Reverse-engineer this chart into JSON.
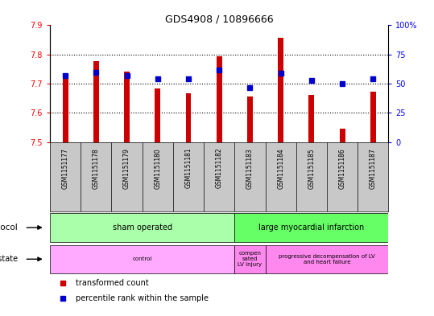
{
  "title": "GDS4908 / 10896666",
  "samples": [
    "GSM1151177",
    "GSM1151178",
    "GSM1151179",
    "GSM1151180",
    "GSM1151181",
    "GSM1151182",
    "GSM1151183",
    "GSM1151184",
    "GSM1151185",
    "GSM1151186",
    "GSM1151187"
  ],
  "transformed_count": [
    7.722,
    7.778,
    7.742,
    7.685,
    7.668,
    7.793,
    7.656,
    7.858,
    7.663,
    7.545,
    7.672
  ],
  "percentile_rank": [
    57,
    60,
    57,
    54,
    54,
    62,
    47,
    59,
    53,
    50,
    54
  ],
  "ylim_left": [
    7.5,
    7.9
  ],
  "ylim_right": [
    0,
    100
  ],
  "yticks_left": [
    7.5,
    7.6,
    7.7,
    7.8,
    7.9
  ],
  "yticks_right": [
    0,
    25,
    50,
    75,
    100
  ],
  "bar_color": "#cc0000",
  "dot_color": "#0000cc",
  "bar_bottom": 7.5,
  "bar_width": 0.18,
  "protocol_groups": [
    {
      "label": "sham operated",
      "start": 0,
      "end": 6,
      "color": "#aaffaa"
    },
    {
      "label": "large myocardial infarction",
      "start": 6,
      "end": 11,
      "color": "#66ff66"
    }
  ],
  "disease_groups": [
    {
      "label": "control",
      "start": 0,
      "end": 6,
      "color": "#ffaaff"
    },
    {
      "label": "compen\nsated\nLV injury",
      "start": 6,
      "end": 7,
      "color": "#ff88ee"
    },
    {
      "label": "progressive decompensation of LV\nand heart failure",
      "start": 7,
      "end": 11,
      "color": "#ff88ee"
    }
  ],
  "xtick_bg": "#c8c8c8",
  "grid_dotted_ticks": [
    7.6,
    7.7,
    7.8
  ],
  "legend_items": [
    {
      "color": "#cc0000",
      "label": "transformed count"
    },
    {
      "color": "#0000cc",
      "label": "percentile rank within the sample"
    }
  ]
}
